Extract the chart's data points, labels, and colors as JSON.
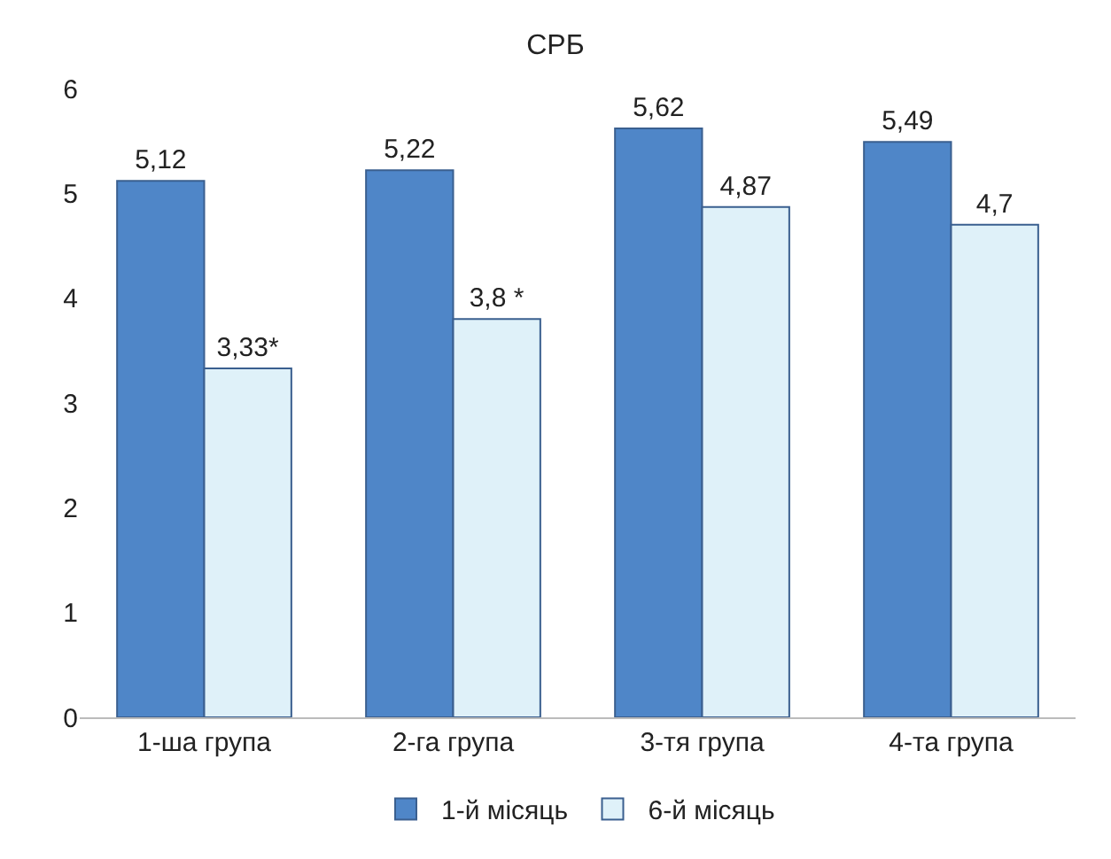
{
  "chart_data": {
    "type": "bar",
    "title": "СРБ",
    "categories": [
      "1-ша група",
      "2-га група",
      "3-тя група",
      "4-та група"
    ],
    "series": [
      {
        "name": "1-й місяць",
        "color": "#4f86c8",
        "values": [
          5.12,
          5.22,
          5.62,
          5.49
        ],
        "value_labels": [
          "5,12",
          "5,22",
          "5,62",
          "5,49"
        ]
      },
      {
        "name": "6-й місяць",
        "color": "#dff1f9",
        "values": [
          3.33,
          3.8,
          4.87,
          4.7
        ],
        "value_labels": [
          "3,33*",
          "3,8 *",
          "4,87",
          "4,7"
        ]
      }
    ],
    "ylim": [
      0,
      6
    ],
    "yticks": [
      0,
      1,
      2,
      3,
      4,
      5,
      6
    ],
    "grid": false,
    "legend": "bottom"
  }
}
